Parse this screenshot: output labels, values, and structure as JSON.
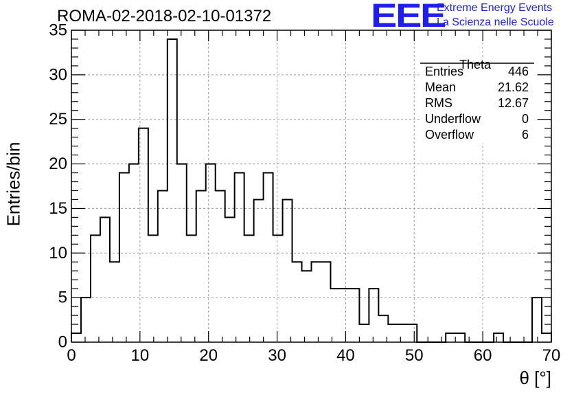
{
  "header": {
    "title": "ROMA-02-2018-02-10-01372",
    "logo_text": "EEE",
    "logo_line1": "Extreme Energy Events",
    "logo_line2": "La Scienza nelle Scuole"
  },
  "stats_box": {
    "name": "Theta",
    "rows": [
      {
        "label": "Entries",
        "value": "446"
      },
      {
        "label": "Mean",
        "value": "21.62"
      },
      {
        "label": "RMS",
        "value": "12.67"
      },
      {
        "label": "Underflow",
        "value": "0"
      },
      {
        "label": "Overflow",
        "value": "6"
      }
    ]
  },
  "colors": {
    "line": "#000000",
    "grid": "#9a9a9a",
    "logo": "#1e1ef0"
  },
  "chart_data": {
    "type": "histogram",
    "title": "ROMA-02-2018-02-10-01372",
    "xlabel": "θ [°]",
    "ylabel": "Entries/bin",
    "xlim": [
      0,
      70
    ],
    "ylim": [
      0,
      35
    ],
    "grid": true,
    "bin_width": 1.4,
    "x_ticks": [
      "0",
      "10",
      "20",
      "30",
      "40",
      "50",
      "60",
      "70"
    ],
    "y_ticks": [
      "0",
      "5",
      "10",
      "15",
      "20",
      "25",
      "30",
      "35"
    ],
    "bins_low_edge": [
      0,
      1.4,
      2.8,
      4.2,
      5.6,
      7.0,
      8.4,
      9.8,
      11.2,
      12.6,
      14.0,
      15.4,
      16.8,
      18.2,
      19.6,
      21.0,
      22.4,
      23.8,
      25.2,
      26.6,
      28.0,
      29.4,
      30.8,
      32.2,
      33.6,
      35.0,
      36.4,
      37.8,
      39.2,
      40.6,
      42.0,
      43.4,
      44.8,
      46.2,
      47.6,
      49.0,
      50.4,
      51.8,
      53.2,
      54.6,
      56.0,
      57.4,
      58.8,
      60.2,
      61.6,
      63.0,
      64.4,
      65.8,
      67.2,
      68.6
    ],
    "values": [
      1,
      5,
      12,
      14,
      9,
      19,
      20,
      24,
      12,
      17,
      34,
      20,
      12,
      17,
      20,
      17,
      14,
      19,
      12,
      16,
      19,
      12,
      16,
      9,
      8,
      9,
      9,
      6,
      6,
      6,
      2,
      6,
      3,
      2,
      2,
      2,
      0,
      0,
      0,
      1,
      1,
      0,
      0,
      0,
      1,
      0,
      0,
      0,
      5,
      1
    ]
  }
}
